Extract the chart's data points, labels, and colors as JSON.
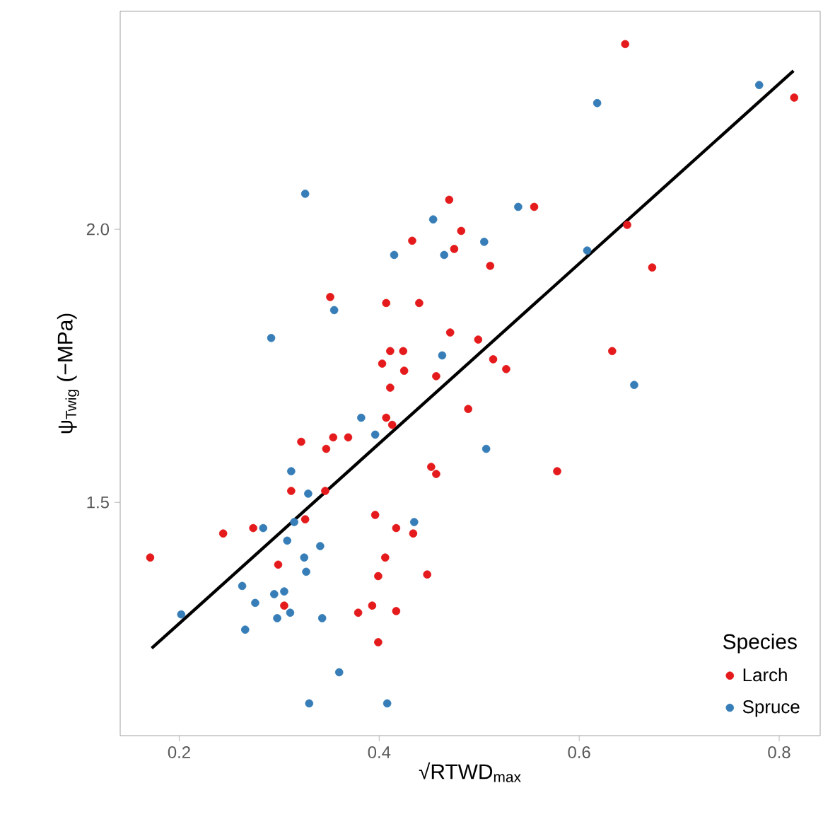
{
  "chart_data": {
    "type": "scatter",
    "xlabel": "√RTWD$_{max}$",
    "ylabel": "ψ$_{Twig}$ (−MPa)",
    "legend_title": "Species",
    "legend": "bottom right",
    "grid": false,
    "xlim": [
      0.141,
      0.841
    ],
    "ylim": [
      1.073,
      2.399
    ],
    "xticks": [
      0.2,
      0.4,
      0.6,
      0.8
    ],
    "yticks": [
      {
        "value": 1.5,
        "label": "1.5"
      },
      {
        "value": 2,
        "label": "2.0"
      }
    ],
    "series": [
      {
        "name": "Larch",
        "marker": "circle",
        "color": "#e41a1c",
        "x": [
          0.171,
          0.244,
          0.274,
          0.322,
          0.354,
          0.369,
          0.347,
          0.312,
          0.346,
          0.326,
          0.299,
          0.305,
          0.396,
          0.417,
          0.434,
          0.406,
          0.399,
          0.448,
          0.379,
          0.393,
          0.417,
          0.399,
          0.452,
          0.457,
          0.407,
          0.413,
          0.411,
          0.457,
          0.425,
          0.489,
          0.47,
          0.482,
          0.433,
          0.475,
          0.351,
          0.407,
          0.44,
          0.471,
          0.411,
          0.424,
          0.403,
          0.646,
          0.815,
          0.555,
          0.511,
          0.648,
          0.673,
          0.499,
          0.514,
          0.527,
          0.633,
          0.578
        ],
        "values": [
          1.399,
          1.443,
          1.453,
          1.611,
          1.619,
          1.619,
          1.598,
          1.521,
          1.521,
          1.469,
          1.386,
          1.311,
          1.477,
          1.453,
          1.443,
          1.399,
          1.365,
          1.368,
          1.298,
          1.311,
          1.301,
          1.244,
          1.565,
          1.552,
          1.655,
          1.642,
          1.71,
          1.731,
          1.741,
          1.671,
          2.054,
          1.997,
          1.979,
          1.964,
          1.876,
          1.865,
          1.865,
          1.811,
          1.777,
          1.777,
          1.754,
          2.339,
          2.241,
          2.041,
          1.933,
          2.008,
          1.93,
          1.798,
          1.762,
          1.744,
          1.777,
          1.557
        ]
      },
      {
        "name": "Spruce",
        "marker": "circle",
        "color": "#377eb8",
        "x": [
          0.618,
          0.78,
          0.539,
          0.505,
          0.608,
          0.655,
          0.507,
          0.326,
          0.454,
          0.415,
          0.465,
          0.355,
          0.292,
          0.463,
          0.382,
          0.396,
          0.312,
          0.329,
          0.284,
          0.315,
          0.308,
          0.341,
          0.325,
          0.327,
          0.263,
          0.276,
          0.295,
          0.305,
          0.311,
          0.298,
          0.343,
          0.266,
          0.202,
          0.36,
          0.33,
          0.408,
          0.435
        ],
        "values": [
          2.231,
          2.264,
          2.041,
          1.977,
          1.961,
          1.715,
          1.598,
          2.065,
          2.018,
          1.953,
          1.953,
          1.852,
          1.801,
          1.769,
          1.655,
          1.624,
          1.557,
          1.516,
          1.453,
          1.464,
          1.43,
          1.42,
          1.399,
          1.373,
          1.347,
          1.316,
          1.332,
          1.337,
          1.298,
          1.288,
          1.288,
          1.267,
          1.295,
          1.189,
          1.132,
          1.132,
          1.464
        ]
      },
      {
        "type": "line",
        "marker": "none",
        "color": "#000000",
        "x": [
          0.1725,
          0.8143
        ],
        "values": [
          1.233,
          2.29
        ]
      }
    ]
  }
}
